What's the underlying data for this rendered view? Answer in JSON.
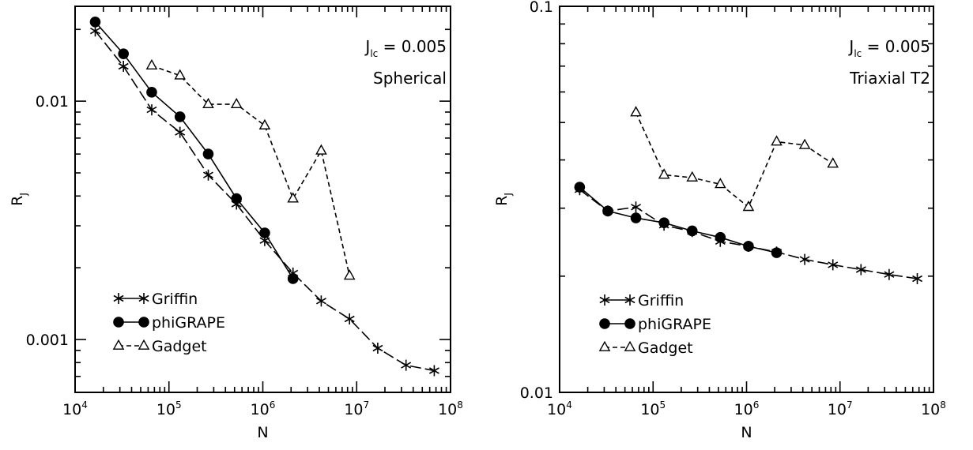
{
  "chart_data": [
    {
      "type": "line",
      "xscale": "log",
      "yscale": "log",
      "xlim": [
        10000,
        100000000
      ],
      "ylim": [
        0.0006,
        0.025
      ],
      "xlabel": "N",
      "ylabel": "R",
      "ylabel_sub": "J",
      "xticklabels": [
        {
          "value": 10000,
          "base": "10",
          "exp": "4"
        },
        {
          "value": 100000,
          "base": "10",
          "exp": "5"
        },
        {
          "value": 1000000,
          "base": "10",
          "exp": "6"
        },
        {
          "value": 10000000,
          "base": "10",
          "exp": "7"
        },
        {
          "value": 100000000,
          "base": "10",
          "exp": "8"
        }
      ],
      "yticklabels": [
        {
          "value": 0.01,
          "text": "0.01"
        },
        {
          "value": 0.001,
          "text": "0.001"
        }
      ],
      "annotation": {
        "prefix": "J",
        "sub": "lc",
        "eq": "= 0.005",
        "model": "Spherical"
      },
      "legend_position": "lower-left",
      "series": [
        {
          "name": "Griffin",
          "marker": "star",
          "dash": "long",
          "x": [
            16384,
            32768,
            65536,
            131072,
            262144,
            524288,
            1048576,
            2097152,
            4194304,
            8388608,
            16777216,
            33554432,
            67108864
          ],
          "y": [
            0.0197,
            0.014,
            0.0092,
            0.0074,
            0.0049,
            0.0037,
            0.0026,
            0.0019,
            0.00145,
            0.00122,
            0.00092,
            0.00078,
            0.00074
          ]
        },
        {
          "name": "phiGRAPE",
          "marker": "circle",
          "dash": "solid",
          "x": [
            16384,
            32768,
            65536,
            131072,
            262144,
            524288,
            1048576,
            2097152
          ],
          "y": [
            0.0215,
            0.0158,
            0.0109,
            0.0086,
            0.006,
            0.0039,
            0.0028,
            0.0018
          ]
        },
        {
          "name": "Gadget",
          "marker": "triangle",
          "dash": "short",
          "x": [
            65536,
            131072,
            262144,
            524288,
            1048576,
            2097152,
            4194304,
            8388608
          ],
          "y": [
            0.0141,
            0.0128,
            0.0097,
            0.0097,
            0.0079,
            0.0039,
            0.0062,
            0.00185
          ]
        }
      ]
    },
    {
      "type": "line",
      "xscale": "log",
      "yscale": "log",
      "xlim": [
        10000,
        100000000
      ],
      "ylim": [
        0.01,
        0.1
      ],
      "xlabel": "N",
      "ylabel": "R",
      "ylabel_sub": "J",
      "xticklabels": [
        {
          "value": 10000,
          "base": "10",
          "exp": "4"
        },
        {
          "value": 100000,
          "base": "10",
          "exp": "5"
        },
        {
          "value": 1000000,
          "base": "10",
          "exp": "6"
        },
        {
          "value": 10000000,
          "base": "10",
          "exp": "7"
        },
        {
          "value": 100000000,
          "base": "10",
          "exp": "8"
        }
      ],
      "yticklabels": [
        {
          "value": 0.1,
          "text": "0.1"
        },
        {
          "value": 0.01,
          "text": "0.01"
        }
      ],
      "annotation": {
        "prefix": "J",
        "sub": "lc",
        "eq": "= 0.005",
        "model": "Triaxial T2"
      },
      "legend_position": "lower-left",
      "series": [
        {
          "name": "Griffin",
          "marker": "star",
          "dash": "long",
          "x": [
            16384,
            32768,
            65536,
            131072,
            262144,
            524288,
            1048576,
            2097152,
            4194304,
            8388608,
            16777216,
            33554432,
            67108864
          ],
          "y": [
            0.0335,
            0.0295,
            0.0302,
            0.0271,
            0.0261,
            0.0246,
            0.0239,
            0.0231,
            0.0221,
            0.0214,
            0.0208,
            0.0202,
            0.0197
          ]
        },
        {
          "name": "phiGRAPE",
          "marker": "circle",
          "dash": "solid",
          "x": [
            16384,
            32768,
            65536,
            131072,
            262144,
            524288,
            1048576,
            2097152
          ],
          "y": [
            0.034,
            0.0295,
            0.0283,
            0.0275,
            0.0262,
            0.0252,
            0.0239,
            0.023
          ]
        },
        {
          "name": "Gadget",
          "marker": "triangle",
          "dash": "short",
          "x": [
            65536,
            131072,
            262144,
            524288,
            1048576,
            2097152,
            4194304,
            8388608
          ],
          "y": [
            0.0531,
            0.0366,
            0.036,
            0.0346,
            0.0302,
            0.0446,
            0.0437,
            0.0391
          ]
        }
      ]
    }
  ]
}
